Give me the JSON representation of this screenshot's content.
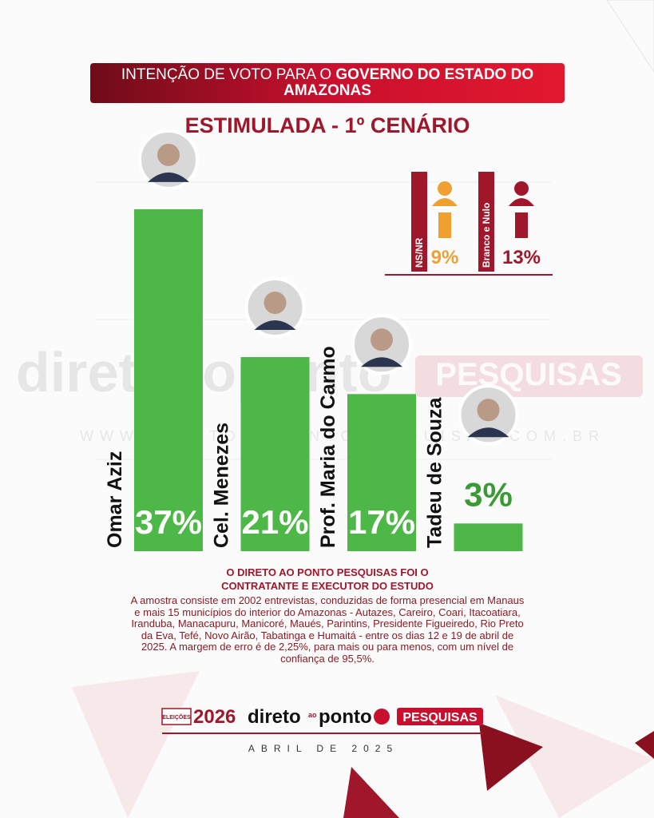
{
  "chart_data": {
    "type": "bar",
    "title_prefix": "INTENÇÃO DE VOTO PARA O",
    "title_emphasis": "GOVERNO DO ESTADO DO AMAZONAS",
    "subtitle": "ESTIMULADA - 1º CENÁRIO",
    "categories": [
      "Omar Aziz",
      "Cel. Menezes",
      "Prof. Maria do Carmo",
      "Tadeu de Souza"
    ],
    "values": [
      37,
      21,
      17,
      3
    ],
    "value_labels": [
      "37%",
      "21%",
      "17%",
      "3%"
    ],
    "color": "#4db848"
  },
  "inset": [
    {
      "label": "NS/NR",
      "value": 9,
      "value_label": "9%",
      "color": "#f0a030"
    },
    {
      "label": "Branco e Nulo",
      "value": 13,
      "value_label": "13%",
      "color": "#a0162a"
    }
  ],
  "watermark": {
    "brand": "diretoaoponto",
    "tag": "PESQUISAS",
    "url": "WWW.DIRETOAOPONTOPESQUISAS.COM.BR"
  },
  "notes": {
    "contractor": "O DIRETO AO PONTO PESQUISAS FOI O CONTRATANTE E EXECUTOR DO ESTUDO",
    "methodology": "A amostra consiste em 2002 entrevistas, conduzidas de forma presencial em Manaus e mais 15 municípios do interior do Amazonas - Autazes, Careiro, Coari, Itacoatiara, Iranduba, Manacapuru, Manicoré, Maués, Parintins, Presidente Figueiredo, Rio Preto da Eva, Tefé, Novo Airão, Tabatinga e Humaitá - entre os dias 12 e 19 de abril de 2025. A margem de erro é de 2,25%, para mais ou para menos, com um nível de confiança de 95,5%."
  },
  "footer": {
    "badge": "ELEIÇÕES",
    "year": "2026",
    "brand_a": "direto",
    "brand_b": "ao",
    "brand_c": "ponto",
    "tag": "PESQUISAS",
    "date": "ABRIL DE 2025"
  }
}
